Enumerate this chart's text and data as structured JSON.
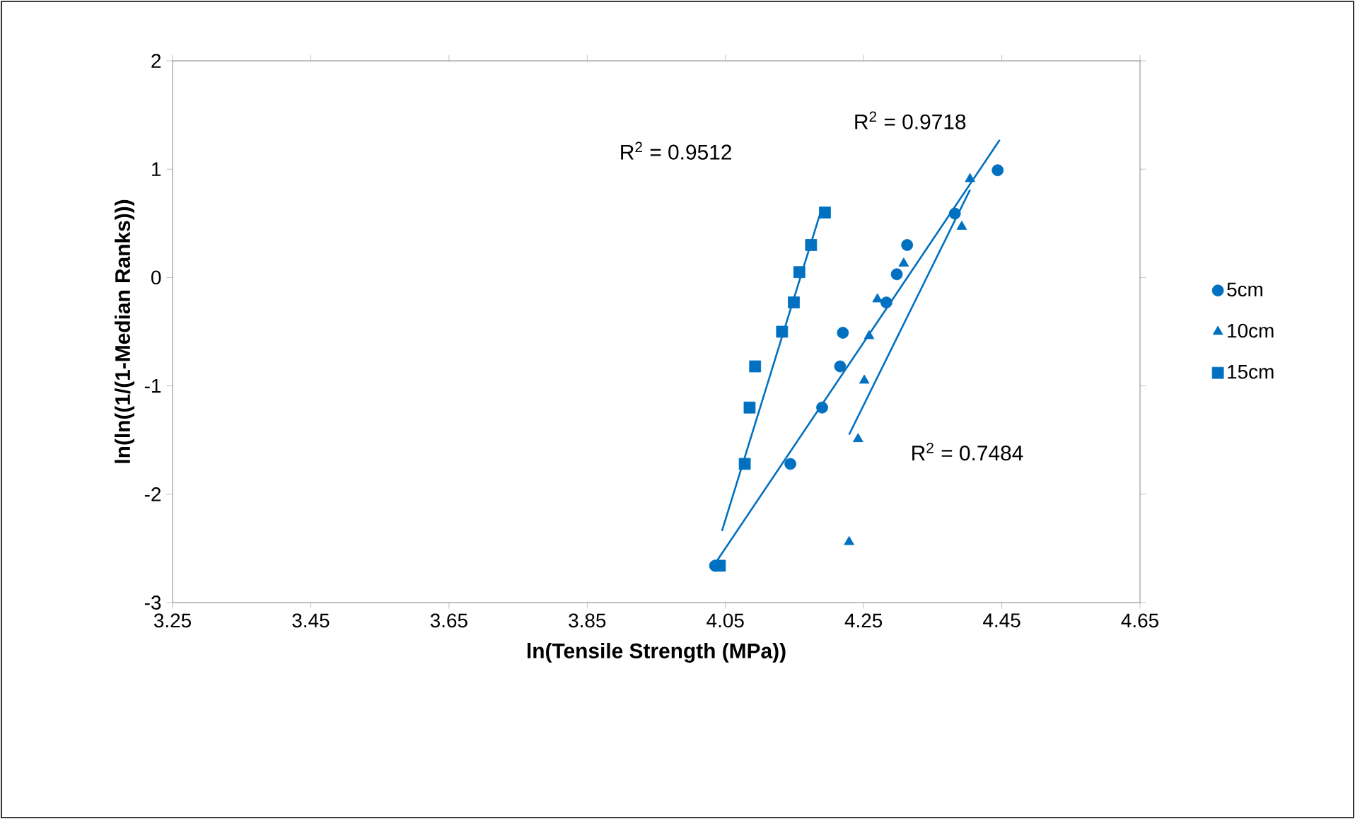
{
  "chart_data": {
    "type": "scatter",
    "xlabel": "ln(Tensile Strength (MPa))",
    "ylabel": "ln(ln((1/(1-Median Ranks)))",
    "xlim": [
      3.25,
      4.65
    ],
    "ylim": [
      -3,
      2
    ],
    "xticks": [
      3.25,
      3.45,
      3.65,
      3.85,
      4.05,
      4.25,
      4.45,
      4.65
    ],
    "yticks": [
      -3,
      -2,
      -1,
      0,
      1,
      2
    ],
    "grid": false,
    "legend": "right",
    "series": [
      {
        "name": "5cm",
        "marker": "circle",
        "color": "#0070c0",
        "x": [
          4.035,
          4.144,
          4.19,
          4.216,
          4.22,
          4.283,
          4.298,
          4.313,
          4.382,
          4.444
        ],
        "values": [
          -2.66,
          -1.72,
          -1.2,
          -0.82,
          -0.51,
          -0.23,
          0.03,
          0.3,
          0.59,
          0.99
        ]
      },
      {
        "name": "10cm",
        "marker": "triangle",
        "color": "#0070c0",
        "x": [
          4.229,
          4.242,
          4.251,
          4.258,
          4.27,
          4.308,
          4.392,
          4.404
        ],
        "values": [
          -2.44,
          -1.49,
          -0.95,
          -0.54,
          -0.2,
          0.13,
          0.47,
          0.91
        ]
      },
      {
        "name": "15cm",
        "marker": "square",
        "color": "#0070c0",
        "x": [
          4.042,
          4.078,
          4.085,
          4.093,
          4.132,
          4.149,
          4.157,
          4.174,
          4.194
        ],
        "values": [
          -2.66,
          -1.72,
          -1.2,
          -0.82,
          -0.5,
          -0.23,
          0.05,
          0.3,
          0.6
        ]
      },
      {
        "type": "line",
        "marker": "none",
        "color": "#0070c0",
        "x": [
          4.045,
          4.19
        ],
        "values": [
          -2.34,
          0.65
        ]
      },
      {
        "type": "line",
        "marker": "none",
        "color": "#0070c0",
        "x": [
          4.033,
          4.447
        ],
        "values": [
          -2.66,
          1.27
        ]
      },
      {
        "type": "line",
        "marker": "none",
        "color": "#0070c0",
        "x": [
          4.229,
          4.404
        ],
        "values": [
          -1.45,
          0.81
        ]
      }
    ],
    "annotations": [
      "R$^{2}$ = 0.9512",
      "R$^{2}$ = 0.9718",
      "R$^{2}$ = 0.7484"
    ]
  }
}
